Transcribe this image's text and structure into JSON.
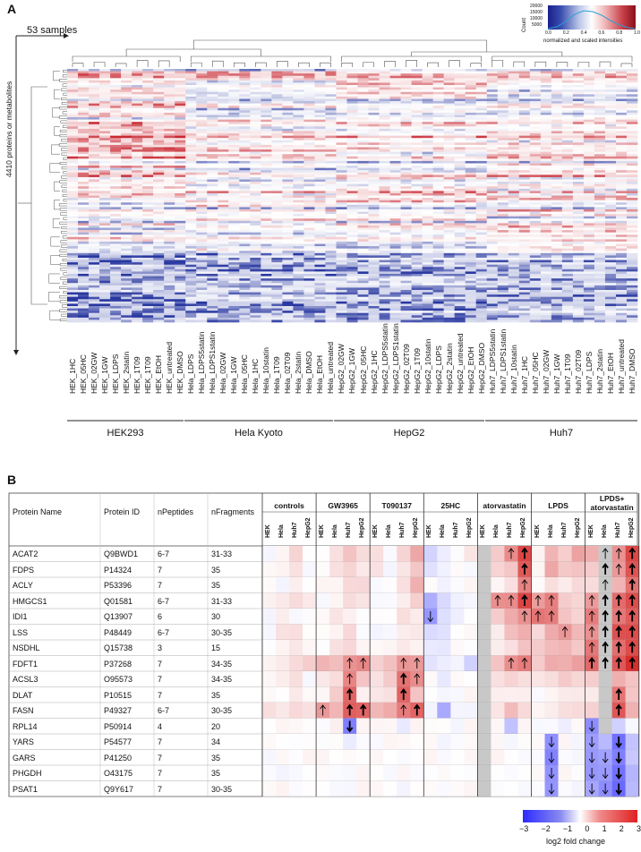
{
  "panelA": {
    "letter": "A",
    "samples_label": "53 samples",
    "features_label": "4410 proteins or metabolites",
    "legend": {
      "title": "normalized and scaled intensities",
      "count_label": "Count",
      "y_ticks": [
        "20000",
        "15000",
        "10000",
        "5000"
      ],
      "x_ticks": [
        "0.0",
        "0.2",
        "0.4",
        "0.6",
        "0.8",
        "1.0"
      ]
    },
    "samples": [
      "HEK_1HC",
      "HEK_05HC",
      "HEK_02GW",
      "HEK_1GW",
      "HEK_LDPS",
      "HEK_2statin",
      "HEK_1T09",
      "HEK_1T09",
      "HEK_EtOH",
      "HEK_untreated",
      "HEK_DMSO",
      "Hela_LDPS",
      "Hela_LDPS5statin",
      "Hela_LDPS1statin",
      "Hela_02GW",
      "Hela_1GW",
      "Hela_05HC",
      "Hela_1HC",
      "Hela_10statin",
      "Hela_1T09",
      "Hela_02T09",
      "Hela_2statin",
      "Hela_DMSO",
      "Hela_EtOH",
      "Hela_untreated",
      "HepG2_02GW",
      "HepG2_1GW",
      "HepG2_05HC",
      "HepG2_1HC",
      "HepG2_LDPS5statin",
      "HepG2_LDPS1statin",
      "HepG2_02T09",
      "HepG2_1T09",
      "HepG2_10statin",
      "HepG2_LDPS",
      "HepG2_2statin",
      "HepG2_untreated",
      "HepG2_EtOH",
      "HepG2_DMSO",
      "Huh7_LDPS5statin",
      "Huh7_LDPS1statin",
      "Huh7_10statin",
      "Huh7_1HC",
      "Huh7_05HC",
      "Huh7_02GW",
      "Huh7_1GW",
      "Huh7_1T09",
      "Huh7_02T09",
      "Huh7_LDPS",
      "Huh7_2statin",
      "Huh7_EtOH",
      "Huh7_untreated",
      "Huh7_DMSO"
    ],
    "groups": [
      "HEK293",
      "Hela Kyoto",
      "HepG2",
      "Huh7"
    ]
  },
  "panelB": {
    "letter": "B",
    "columns": {
      "protein_name": "Protein Name",
      "protein_id": "Protein ID",
      "npeptides": "nPeptides",
      "nfragments": "nFragments"
    },
    "conditions": [
      "controls",
      "GW3965",
      "T090137",
      "25HC",
      "atorvastatin",
      "LPDS",
      "LPDS+ atorvastatin"
    ],
    "cell_lines": [
      "HEK",
      "Hela",
      "Huh7",
      "HepG2"
    ],
    "rows": [
      {
        "name": "ACAT2",
        "id": "Q9BWD1",
        "pep": "6-7",
        "frag": "31-33"
      },
      {
        "name": "FDPS",
        "id": "P14324",
        "pep": "7",
        "frag": "35"
      },
      {
        "name": "ACLY",
        "id": "P53396",
        "pep": "7",
        "frag": "35"
      },
      {
        "name": "HMGCS1",
        "id": "Q01581",
        "pep": "6-7",
        "frag": "31-33"
      },
      {
        "name": "IDI1",
        "id": "Q13907",
        "pep": "6",
        "frag": "30"
      },
      {
        "name": "LSS",
        "id": "P48449",
        "pep": "6-7",
        "frag": "30-35"
      },
      {
        "name": "NSDHL",
        "id": "Q15738",
        "pep": "3",
        "frag": "15"
      },
      {
        "name": "FDFT1",
        "id": "P37268",
        "pep": "7",
        "frag": "34-35"
      },
      {
        "name": "ACSL3",
        "id": "O95573",
        "pep": "7",
        "frag": "34-35"
      },
      {
        "name": "DLAT",
        "id": "P10515",
        "pep": "7",
        "frag": "35"
      },
      {
        "name": "FASN",
        "id": "P49327",
        "pep": "6-7",
        "frag": "30-35"
      },
      {
        "name": "RPL14",
        "id": "P50914",
        "pep": "4",
        "frag": "20"
      },
      {
        "name": "YARS",
        "id": "P54577",
        "pep": "7",
        "frag": "34"
      },
      {
        "name": "GARS",
        "id": "P41250",
        "pep": "7",
        "frag": "35"
      },
      {
        "name": "PHGDH",
        "id": "O43175",
        "pep": "7",
        "frag": "35"
      },
      {
        "name": "PSAT1",
        "id": "Q9Y617",
        "pep": "7",
        "frag": "30-35"
      }
    ],
    "colorbar": {
      "ticks": [
        "−3",
        "−2",
        "−1",
        "0",
        "1",
        "2",
        "3"
      ],
      "label": "log2 fold change"
    }
  }
}
